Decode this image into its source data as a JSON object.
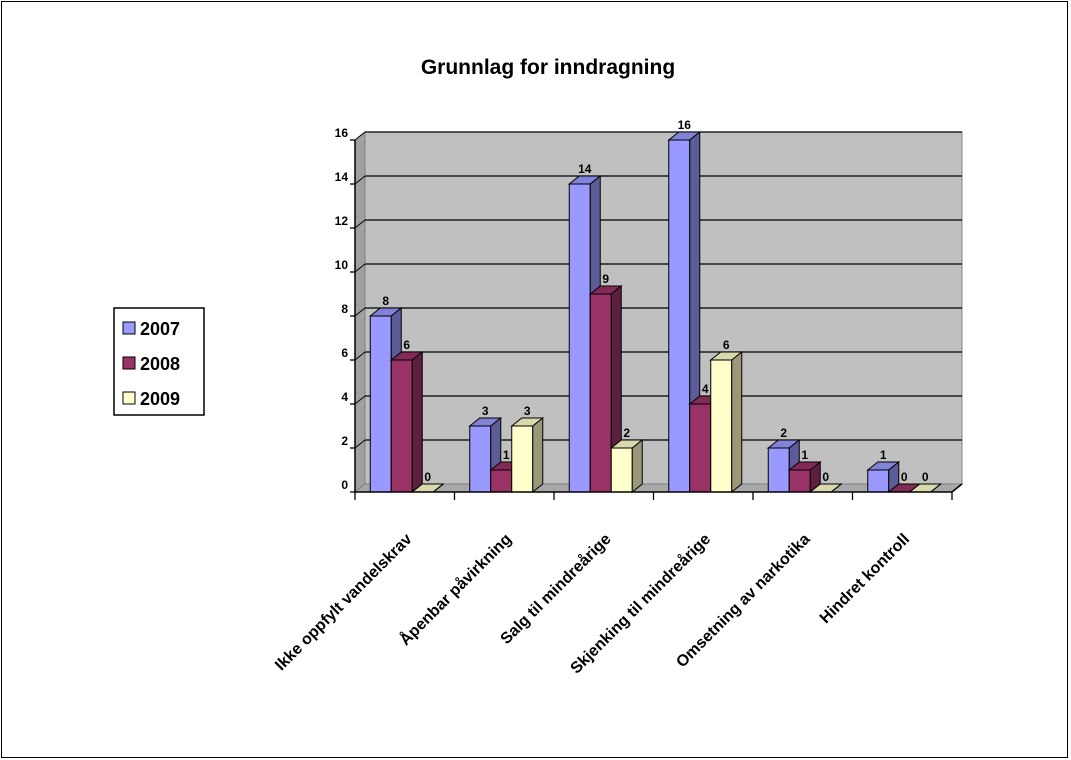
{
  "chart_data": {
    "type": "bar",
    "title": "Grunnlag for inndragning",
    "xlabel": "",
    "ylabel": "",
    "ylim": [
      0,
      16
    ],
    "yticks": [
      0,
      2,
      4,
      6,
      8,
      10,
      12,
      14,
      16
    ],
    "grid": true,
    "three_d": true,
    "legend_position": "left",
    "categories": [
      "Ikke oppfylt vandelskrav",
      "Åpenbar påvirkning",
      "Salg til mindreårige",
      "Skjenking til mindreårige",
      "Omsetning av narkotika",
      "Hindret kontroll"
    ],
    "series": [
      {
        "name": "2007",
        "values": [
          8,
          3,
          14,
          16,
          2,
          1
        ],
        "color": "#9999ff"
      },
      {
        "name": "2008",
        "values": [
          6,
          1,
          9,
          4,
          1,
          0
        ],
        "color": "#993366"
      },
      {
        "name": "2009",
        "values": [
          0,
          3,
          2,
          6,
          0,
          0
        ],
        "color": "#ffffcc"
      }
    ],
    "plot_area_color": "#c0c0c0"
  }
}
